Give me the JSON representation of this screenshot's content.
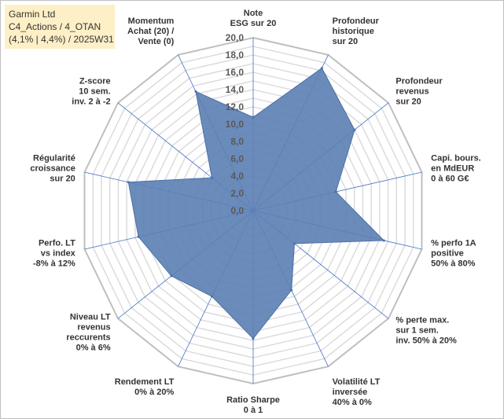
{
  "info_box": {
    "line1": "Garmin Ltd",
    "line2": "C4_Actions / 4_OTAN",
    "line3": "(4,1% | 4,4%) / 2025W31",
    "background": "#fdefc6"
  },
  "chart_data": {
    "type": "radar",
    "title": "",
    "rlim": [
      0,
      20
    ],
    "tick_values": [
      0,
      2,
      4,
      6,
      8,
      10,
      12,
      14,
      16,
      18,
      20
    ],
    "tick_labels": [
      "0,0",
      "2,0",
      "4,0",
      "6,0",
      "8,0",
      "10,0",
      "12,0",
      "14,0",
      "16,0",
      "18,0",
      "20,0"
    ],
    "grid": true,
    "categories": [
      [
        "Note",
        "ESG sur 20"
      ],
      [
        "Profondeur",
        "historique",
        "sur 20"
      ],
      [
        "Profondeur",
        "revenus",
        "sur 20"
      ],
      [
        "Capi. bours.",
        "en MdEUR",
        "0 à 60 G€"
      ],
      [
        "% perfo 1A",
        "positive",
        "50% à 80%"
      ],
      [
        "% perte max.",
        "sur 1 sem.",
        "inv. 50% à 20%"
      ],
      [
        "Volatilité LT",
        "inversée",
        "40% à 0%"
      ],
      [
        "Ratio Sharpe",
        "0 à 1"
      ],
      [
        "Rendement LT",
        "0% à 20%"
      ],
      [
        "Niveau LT",
        "revenus",
        "reccurents",
        "0% à 6%"
      ],
      [
        "Perfo. LT",
        "vs index",
        "-8% à 12%"
      ],
      [
        "Régularité",
        "croissance",
        "sur 20"
      ],
      [
        "Z-score",
        "10 sem.",
        "inv. 2 à -2"
      ],
      [
        "Momentum",
        "Achat (20) /",
        "Vente (0)"
      ]
    ],
    "series": [
      {
        "values": [
          10.8,
          18.3,
          15.0,
          9.8,
          15.5,
          6.1,
          10.2,
          14.8,
          11.0,
          12.1,
          13.6,
          14.8,
          6.1,
          15.3
        ]
      }
    ],
    "colors": {
      "fill": "#5b7fb4",
      "stroke": "#4a6fa6",
      "grid": "#d9d9d9",
      "spokes": "#4472c4"
    }
  }
}
